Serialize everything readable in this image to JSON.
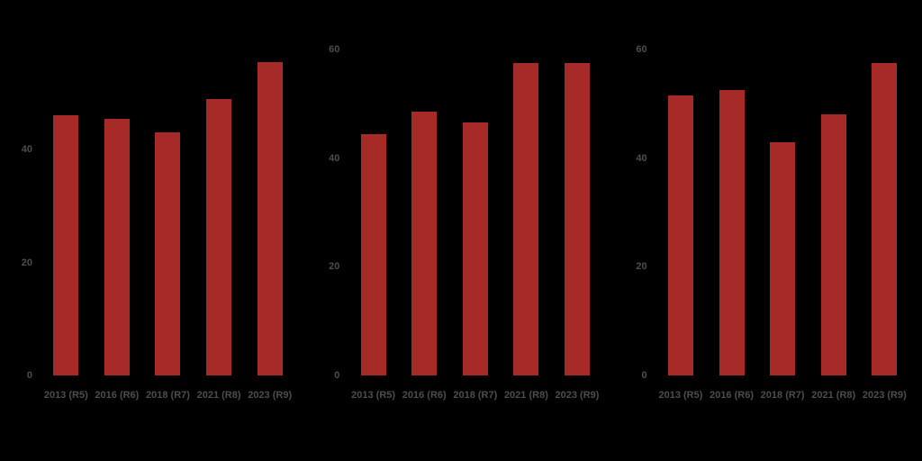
{
  "background_color": "#000000",
  "chart_data": [
    {
      "type": "bar",
      "panel": "left",
      "categories": [
        "2013 (R5)",
        "2016 (R6)",
        "2018 (R7)",
        "2021 (R8)",
        "2023 (R9)"
      ],
      "values": [
        46,
        45.5,
        43,
        49,
        55.5
      ],
      "yticks": [
        0,
        20,
        40
      ],
      "ytick_labels": [
        "0",
        "20",
        "40"
      ],
      "ylim": [
        0,
        57.7
      ],
      "grid": false,
      "legend": "none",
      "bar_color": "#A62A28",
      "tick_label_color": "#4D4D4D"
    },
    {
      "type": "bar",
      "panel": "middle",
      "categories": [
        "2013 (R5)",
        "2016 (R6)",
        "2018 (R7)",
        "2021 (R8)",
        "2023 (R9)"
      ],
      "values": [
        44.5,
        48.5,
        46.5,
        57.5,
        57.5
      ],
      "yticks": [
        0,
        20,
        40,
        60
      ],
      "ytick_labels": [
        "0",
        "20",
        "40",
        "60"
      ],
      "ylim": [
        0,
        60
      ],
      "grid": false,
      "legend": "none",
      "bar_color": "#A62A28",
      "tick_label_color": "#4D4D4D"
    },
    {
      "type": "bar",
      "panel": "right",
      "categories": [
        "2013 (R5)",
        "2016 (R6)",
        "2018 (R7)",
        "2021 (R8)",
        "2023 (R9)"
      ],
      "values": [
        51.5,
        52.5,
        43,
        48,
        57.5
      ],
      "yticks": [
        0,
        20,
        40,
        60
      ],
      "ytick_labels": [
        "0",
        "20",
        "40",
        "60"
      ],
      "ylim": [
        0,
        60
      ],
      "grid": false,
      "legend": "none",
      "bar_color": "#A62A28",
      "tick_label_color": "#4D4D4D"
    }
  ]
}
